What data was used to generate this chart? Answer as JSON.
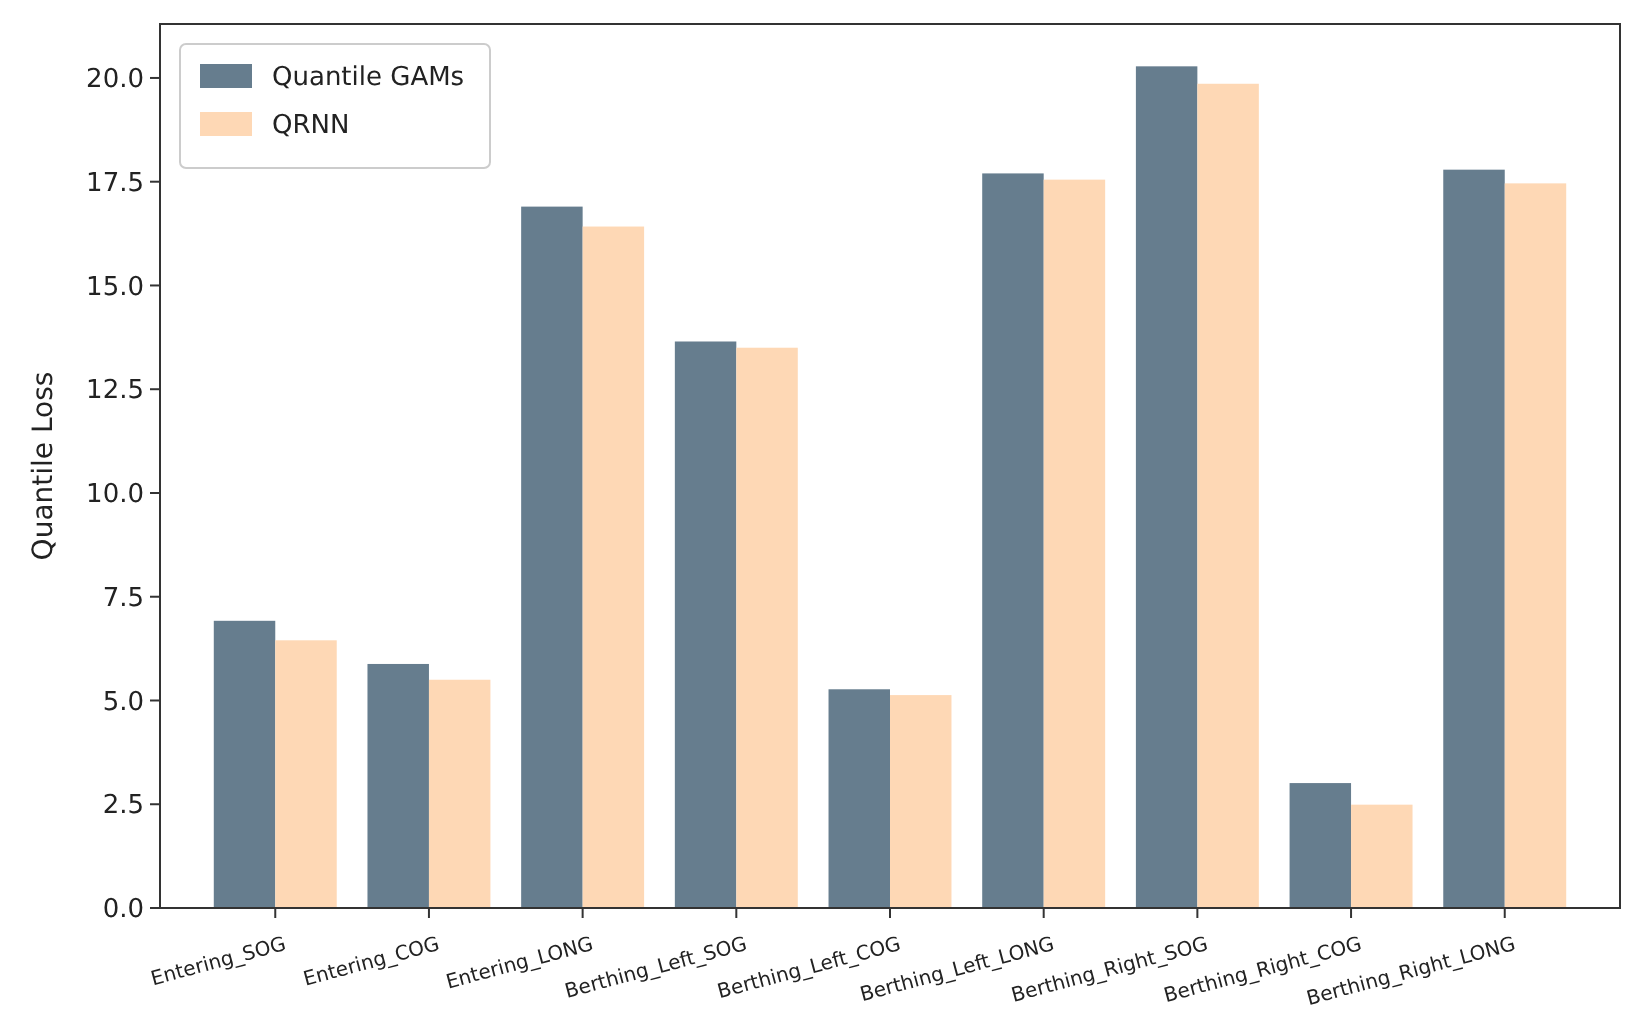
{
  "chart_data": {
    "type": "bar",
    "ylabel": "Quantile Loss",
    "categories": [
      "Entering_SOG",
      "Entering_COG",
      "Entering_LONG",
      "Berthing_Left_SOG",
      "Berthing_Left_COG",
      "Berthing_Left_LONG",
      "Berthing_Right_SOG",
      "Berthing_Right_COG",
      "Berthing_Right_LONG"
    ],
    "series": [
      {
        "name": "Quantile GAMs",
        "color": "#667d8e",
        "values": [
          6.92,
          5.88,
          16.9,
          13.65,
          5.27,
          17.7,
          20.28,
          3.01,
          17.79
        ]
      },
      {
        "name": "QRNN",
        "color": "#fed8b5",
        "values": [
          6.45,
          5.5,
          16.42,
          13.5,
          5.13,
          17.55,
          19.86,
          2.49,
          17.46
        ]
      }
    ],
    "ylim": [
      0,
      21.3
    ],
    "yticks": [
      {
        "value": 0,
        "label": "0.0"
      },
      {
        "value": 2.5,
        "label": "2.5"
      },
      {
        "value": 5,
        "label": "5.0"
      },
      {
        "value": 7.5,
        "label": "7.5"
      },
      {
        "value": 10,
        "label": "10.0"
      },
      {
        "value": 12.5,
        "label": "12.5"
      },
      {
        "value": 15,
        "label": "15.0"
      },
      {
        "value": 17.5,
        "label": "17.5"
      },
      {
        "value": 20,
        "label": "20.0"
      }
    ],
    "grid": false,
    "legend": "top left"
  }
}
